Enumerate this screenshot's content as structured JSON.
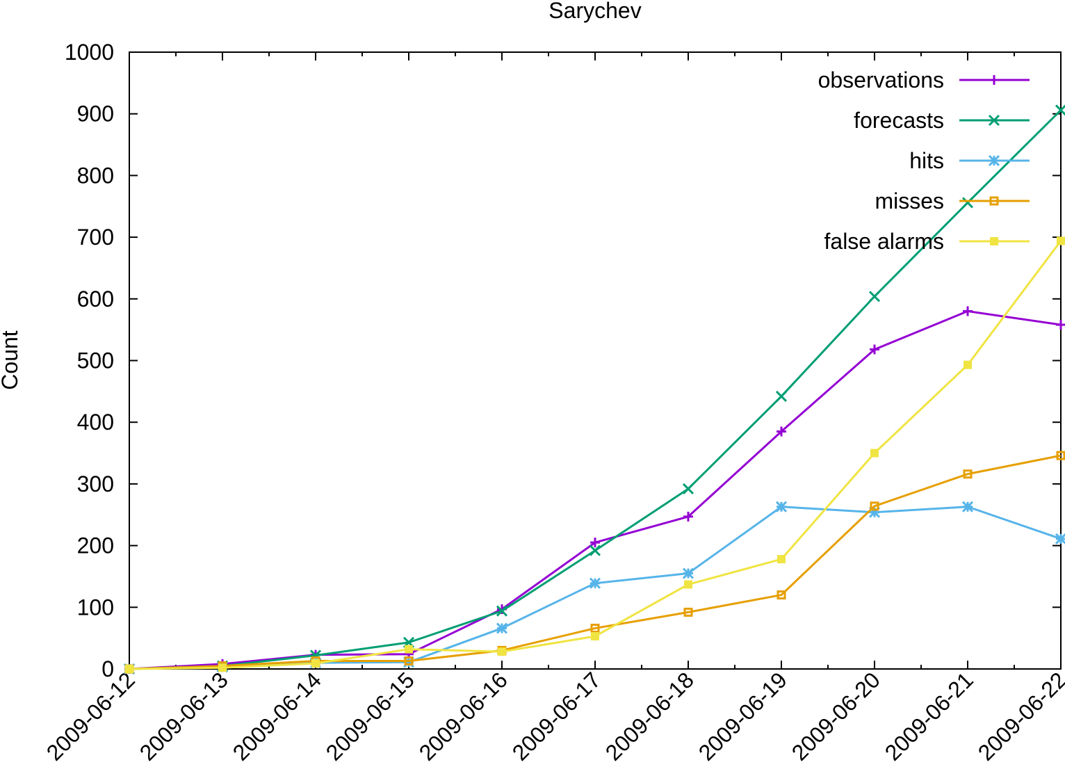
{
  "chart_data": {
    "type": "line",
    "title": "Sarychev",
    "xlabel": "",
    "ylabel": "Count",
    "ylim": [
      0,
      1000
    ],
    "yticks": [
      "0",
      "100",
      "200",
      "300",
      "400",
      "500",
      "600",
      "700",
      "800",
      "900",
      "1000"
    ],
    "x": [
      "2009-06-12",
      "2009-06-13",
      "2009-06-14",
      "2009-06-15",
      "2009-06-16",
      "2009-06-17",
      "2009-06-18",
      "2009-06-19",
      "2009-06-20",
      "2009-06-21",
      "2009-06-22"
    ],
    "grid": false,
    "legend_position": "top-right",
    "series": [
      {
        "name": "observations",
        "color": "#9400d3",
        "marker": "plus",
        "values": [
          0,
          8,
          23,
          24,
          97,
          205,
          247,
          385,
          518,
          580,
          558
        ]
      },
      {
        "name": "forecasts",
        "color": "#009e73",
        "marker": "cross",
        "values": [
          0,
          5,
          22,
          43,
          94,
          192,
          292,
          442,
          604,
          756,
          906
        ]
      },
      {
        "name": "hits",
        "color": "#56b4e9",
        "marker": "star",
        "values": [
          0,
          3,
          10,
          11,
          66,
          139,
          155,
          263,
          254,
          263,
          211
        ]
      },
      {
        "name": "misses",
        "color": "#e69f00",
        "marker": "square-open",
        "values": [
          0,
          5,
          13,
          13,
          30,
          66,
          92,
          120,
          264,
          316,
          346
        ]
      },
      {
        "name": "false alarms",
        "color": "#f0e442",
        "marker": "square-filled",
        "values": [
          0,
          2,
          9,
          32,
          28,
          53,
          137,
          178,
          350,
          493,
          694
        ]
      }
    ]
  }
}
